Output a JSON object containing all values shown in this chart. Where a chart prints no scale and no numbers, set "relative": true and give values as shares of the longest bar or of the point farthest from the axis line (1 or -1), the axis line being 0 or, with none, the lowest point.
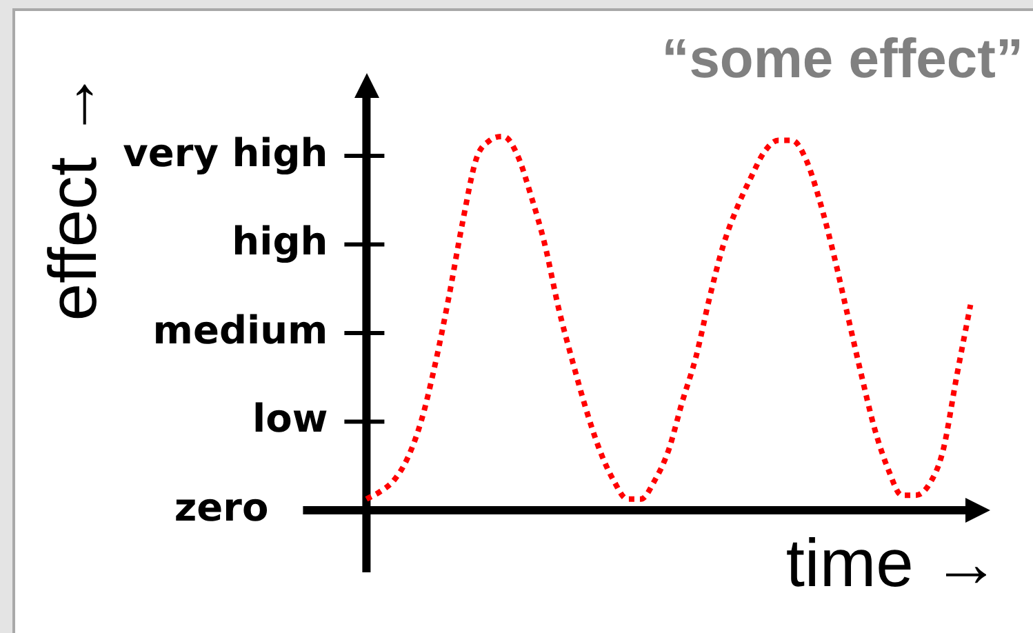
{
  "chart_data": {
    "type": "line",
    "title": "“some effect”",
    "xlabel": "time →",
    "ylabel": "effect →",
    "relative": true,
    "categories": [
      null,
      null,
      null,
      null,
      null,
      null,
      null,
      null,
      null,
      null,
      null,
      null,
      null,
      null,
      null,
      null,
      null,
      null,
      null,
      null,
      null,
      null,
      null,
      null,
      null,
      null,
      null,
      null,
      null,
      null,
      null,
      null,
      null,
      null,
      null,
      null,
      null,
      null,
      null,
      null,
      null,
      null,
      null,
      null,
      null
    ],
    "values": [
      0.03,
      0.05,
      0.08,
      0.14,
      0.24,
      0.39,
      0.57,
      0.77,
      0.94,
      0.99,
      1,
      0.95,
      0.84,
      0.71,
      0.54,
      0.4,
      0.27,
      0.16,
      0.08,
      0.03,
      0.03,
      0.08,
      0.16,
      0.29,
      0.41,
      0.57,
      0.71,
      0.81,
      0.89,
      0.96,
      0.99,
      0.99,
      0.94,
      0.83,
      0.69,
      0.53,
      0.37,
      0.22,
      0.11,
      0.04,
      0.04,
      0.07,
      0.16,
      0.36,
      0.55
    ],
    "color": "#ff0000",
    "line_style": "dotted",
    "marker": "none",
    "annotations": [
      "zero",
      "low",
      "medium",
      "high",
      "very high"
    ]
  }
}
